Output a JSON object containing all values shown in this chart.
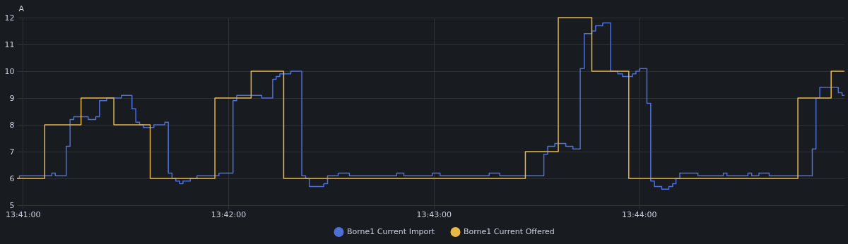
{
  "chart_data": {
    "type": "step",
    "ylabel": "A",
    "xlim": [
      13.68286,
      13.75
    ],
    "ylim": [
      5,
      12
    ],
    "yticks": [
      5,
      6,
      7,
      8,
      9,
      10,
      11,
      12
    ],
    "xticks": [
      {
        "value": 13.68333,
        "label": "13:41:00"
      },
      {
        "value": 13.7,
        "label": "13:42:00"
      },
      {
        "value": 13.71667,
        "label": "13:43:00"
      },
      {
        "value": 13.73333,
        "label": "13:44:00"
      }
    ],
    "grid": true,
    "legend": "bottom",
    "line_style": "solid",
    "marker": "none",
    "series": [
      {
        "name": "Borne1 Current Import",
        "color": "#4e6fd8",
        "x": [
          13.68286,
          13.68306,
          13.68569,
          13.68597,
          13.68686,
          13.68717,
          13.68747,
          13.68864,
          13.68925,
          13.68956,
          13.69014,
          13.69133,
          13.69219,
          13.6925,
          13.69281,
          13.69311,
          13.69397,
          13.69486,
          13.69514,
          13.69544,
          13.69575,
          13.69606,
          13.69633,
          13.69692,
          13.69747,
          13.69925,
          13.70039,
          13.70069,
          13.70272,
          13.70361,
          13.70389,
          13.70419,
          13.70508,
          13.70597,
          13.70628,
          13.70658,
          13.70775,
          13.70806,
          13.70892,
          13.70983,
          13.71367,
          13.71425,
          13.71656,
          13.71719,
          13.72117,
          13.72203,
          13.72561,
          13.72592,
          13.7265,
          13.72739,
          13.72797,
          13.72856,
          13.72889,
          13.7295,
          13.72981,
          13.73039,
          13.73103,
          13.73161,
          13.732,
          13.73281,
          13.73308,
          13.73339,
          13.73397,
          13.73428,
          13.73458,
          13.73517,
          13.73575,
          13.73606,
          13.73633,
          13.73664,
          13.73811,
          13.74017,
          13.74047,
          13.74217,
          13.74247,
          13.74306,
          13.74389,
          13.74739,
          13.74769,
          13.748,
          13.7495,
          13.74981,
          13.75
        ],
        "values": [
          6.0,
          6.1,
          6.2,
          6.1,
          7.2,
          8.2,
          8.3,
          8.2,
          8.3,
          8.9,
          9.0,
          9.1,
          8.6,
          8.1,
          8.0,
          7.9,
          8.0,
          8.1,
          6.2,
          6.0,
          5.9,
          5.8,
          5.9,
          6.0,
          6.1,
          6.2,
          8.9,
          9.1,
          9.0,
          9.7,
          9.8,
          9.9,
          10.0,
          6.1,
          6.0,
          5.7,
          5.8,
          6.1,
          6.2,
          6.1,
          6.2,
          6.1,
          6.2,
          6.1,
          6.2,
          6.1,
          6.9,
          7.2,
          7.3,
          7.2,
          7.1,
          10.1,
          11.4,
          11.5,
          11.7,
          11.8,
          10.0,
          9.9,
          9.8,
          9.9,
          10.0,
          10.1,
          8.8,
          5.9,
          5.7,
          5.6,
          5.7,
          5.8,
          6.0,
          6.2,
          6.1,
          6.2,
          6.1,
          6.2,
          6.1,
          6.2,
          6.1,
          7.1,
          9.0,
          9.4,
          9.2,
          9.1,
          9.1
        ]
      },
      {
        "name": "Borne1 Current Offered",
        "color": "#e8b74a",
        "x": [
          13.68286,
          13.68511,
          13.68806,
          13.69072,
          13.69367,
          13.69892,
          13.70186,
          13.7045,
          13.72411,
          13.72678,
          13.7295,
          13.7325,
          13.74622,
          13.74892,
          13.75
        ],
        "values": [
          6,
          8,
          9,
          8,
          6,
          9,
          10,
          6,
          7,
          12,
          10,
          6,
          9,
          10,
          10
        ]
      }
    ]
  }
}
